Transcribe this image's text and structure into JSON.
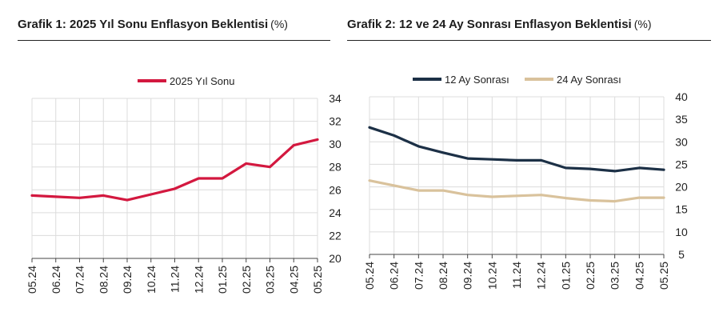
{
  "chart_data": [
    {
      "type": "line",
      "title": "Grafik 1: 2025 Yıl Sonu Enflasyon Beklentisi",
      "unit": "(%)",
      "categories": [
        "05.24",
        "06.24",
        "07.24",
        "08.24",
        "09.24",
        "10.24",
        "11.24",
        "12.24",
        "01.25",
        "02.25",
        "03.25",
        "04.25",
        "05.25"
      ],
      "series": [
        {
          "name": "2025 Yıl Sonu",
          "color": "#d3183f",
          "values": [
            25.5,
            25.4,
            25.3,
            25.5,
            25.1,
            25.6,
            26.1,
            27.0,
            27.0,
            28.3,
            28.0,
            29.9,
            30.4
          ]
        }
      ],
      "yaxis_side": "right",
      "ylim": [
        20,
        34
      ],
      "yticks": [
        20,
        22,
        24,
        26,
        28,
        30,
        32,
        34
      ],
      "grid": true,
      "legend": "top-center"
    },
    {
      "type": "line",
      "title": "Grafik 2: 12 ve 24 Ay Sonrası Enflasyon Beklentisi",
      "unit": "(%)",
      "categories": [
        "05.24",
        "06.24",
        "07.24",
        "08.24",
        "09.24",
        "10.24",
        "11.24",
        "12.24",
        "01.25",
        "02.25",
        "03.25",
        "04.25",
        "05.25"
      ],
      "series": [
        {
          "name": "12 Ay Sonrası",
          "color": "#1c3046",
          "values": [
            33.2,
            31.4,
            29.0,
            27.6,
            26.3,
            26.1,
            25.9,
            25.9,
            24.2,
            24.0,
            23.5,
            24.2,
            23.8
          ]
        },
        {
          "name": "24 Ay Sonrası",
          "color": "#d9c29c",
          "values": [
            21.4,
            20.3,
            19.2,
            19.2,
            18.2,
            17.8,
            18.0,
            18.2,
            17.5,
            17.0,
            16.8,
            17.6,
            17.6
          ]
        }
      ],
      "yaxis_side": "right",
      "ylim": [
        5,
        40
      ],
      "yticks": [
        5,
        10,
        15,
        20,
        25,
        30,
        35,
        40
      ],
      "grid": true,
      "legend": "top-left"
    }
  ]
}
